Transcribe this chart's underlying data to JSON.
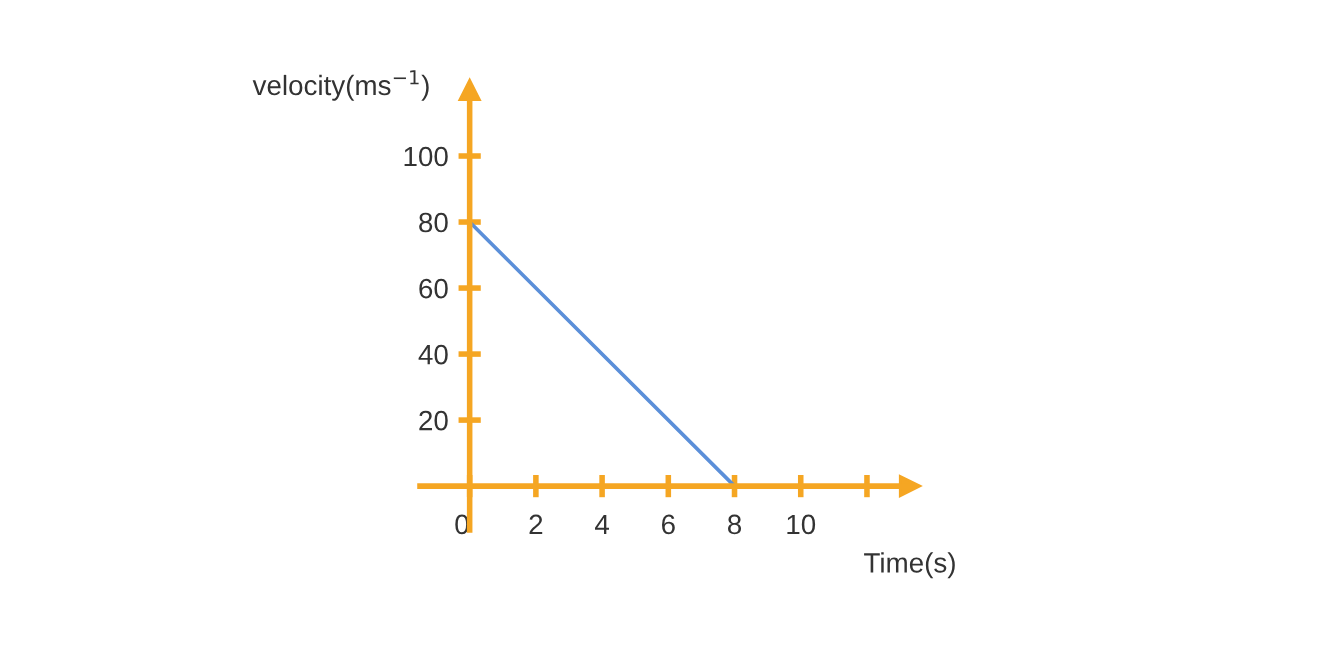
{
  "chart_data": {
    "type": "line",
    "xlabel": "Time(s)",
    "ylabel": "velocity(ms$^{−1}$)",
    "x": [
      0,
      8
    ],
    "series": [
      {
        "color": "#5b8fd9",
        "values": [
          80,
          0
        ]
      }
    ],
    "xlim": [
      -1.5,
      13.3
    ],
    "ylim": [
      -13.3,
      120
    ],
    "xticks": [
      {
        "value": 0,
        "label": "0"
      },
      2,
      4,
      6,
      8,
      10,
      {
        "value": 12,
        "label": null
      }
    ],
    "yticks": [
      20,
      40,
      60,
      80,
      100
    ],
    "grid": false,
    "legend": false,
    "marker": "none",
    "line_style": "solid"
  }
}
